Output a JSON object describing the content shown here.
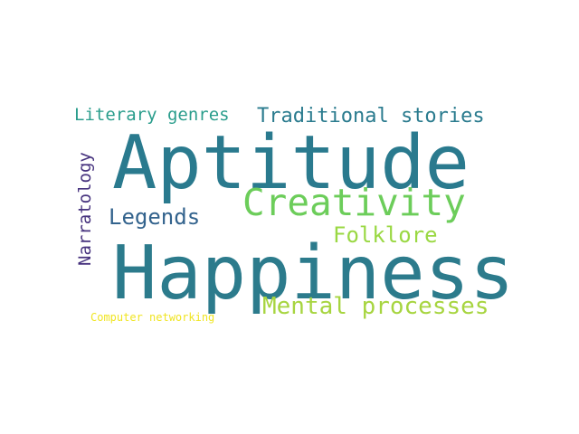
{
  "word_cloud": {
    "background": "#ffffff",
    "words": [
      {
        "key": "happiness",
        "text": "Happiness",
        "color": "#2c7b8c"
      },
      {
        "key": "aptitude",
        "text": "Aptitude",
        "color": "#2a7a8e"
      },
      {
        "key": "creativity",
        "text": "Creativity",
        "color": "#6ccd5a"
      },
      {
        "key": "mental",
        "text": "Mental processes",
        "color": "#a7d540"
      },
      {
        "key": "legends",
        "text": "Legends",
        "color": "#33638d"
      },
      {
        "key": "folklore",
        "text": "Folklore",
        "color": "#9ad843"
      },
      {
        "key": "traditional",
        "text": "Traditional stories",
        "color": "#2a7b8e"
      },
      {
        "key": "literary",
        "text": "Literary genres",
        "color": "#2a9d8c"
      },
      {
        "key": "narratology",
        "text": "Narratology",
        "color": "#46327e"
      },
      {
        "key": "computer",
        "text": "Computer networking",
        "color": "#f0e523"
      }
    ]
  }
}
